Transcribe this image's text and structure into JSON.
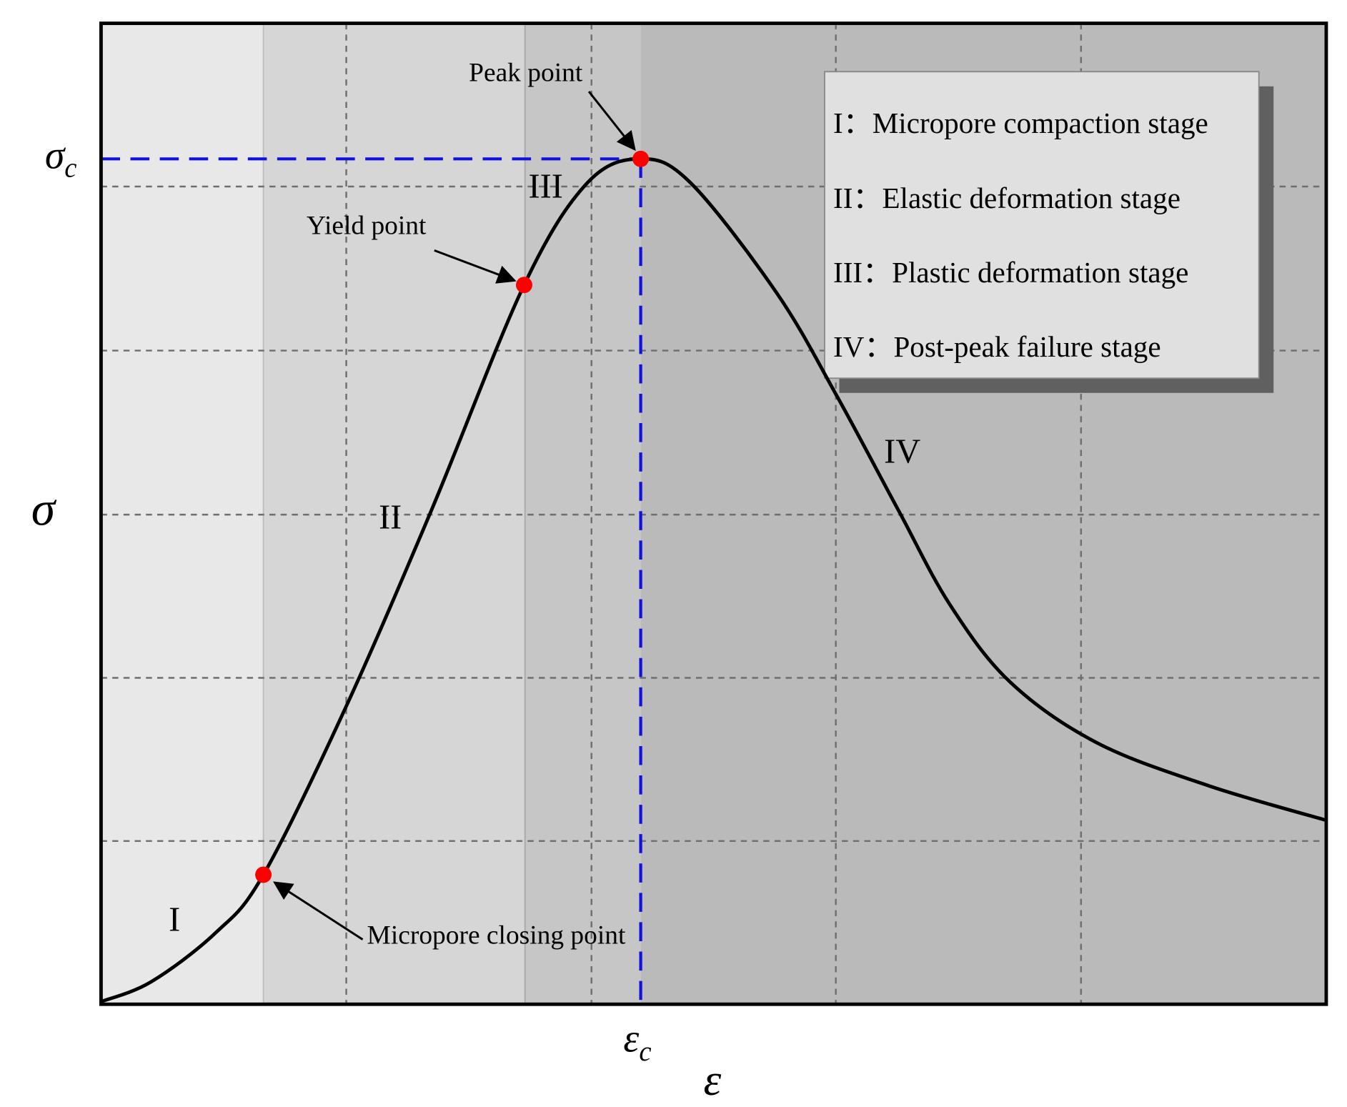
{
  "axes": {
    "x_label": "ε",
    "y_label": "σ",
    "peak_strain": {
      "symbol": "ε",
      "subscript": "c"
    },
    "peak_stress": {
      "symbol": "σ",
      "subscript": "c"
    }
  },
  "stages": [
    "I",
    "II",
    "III",
    "IV"
  ],
  "annotations": {
    "peak": "Peak point",
    "yield": "Yield point",
    "closing": "Micropore closing point"
  },
  "legend": [
    "I：Micropore compaction stage",
    "II：Elastic deformation stage",
    "III：Plastic deformation stage",
    "IV：Post-peak failure stage"
  ]
}
